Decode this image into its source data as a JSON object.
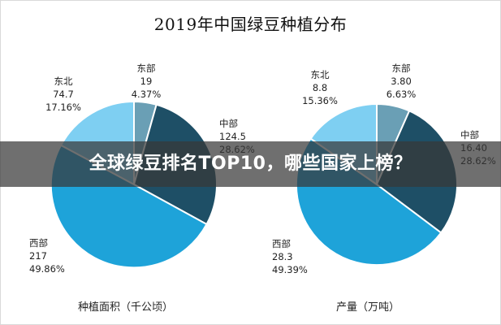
{
  "page": {
    "title": "2019年中国绿豆种植分布",
    "overlay_headline": "全球绿豆排名TOP10，哪些国家上榜？"
  },
  "colors": {
    "东部": "#6a9fb5",
    "中部": "#1e4f66",
    "西部": "#1ea3d9",
    "东北": "#7ecff2"
  },
  "chart_data": [
    {
      "type": "pie",
      "xlabel": "种植面积（千公顷）",
      "slices": [
        {
          "label": "东部",
          "value": 19,
          "value_text": "19",
          "percent": "4.37%"
        },
        {
          "label": "中部",
          "value": 124.5,
          "value_text": "124.5",
          "percent": "28.62%"
        },
        {
          "label": "西部",
          "value": 217,
          "value_text": "217",
          "percent": "49.86%"
        },
        {
          "label": "东北",
          "value": 74.7,
          "value_text": "74.7",
          "percent": "17.16%"
        }
      ]
    },
    {
      "type": "pie",
      "xlabel": "产量（万吨）",
      "slices": [
        {
          "label": "东部",
          "value": 3.8,
          "value_text": "3.80",
          "percent": "6.63%"
        },
        {
          "label": "中部",
          "value": 16.4,
          "value_text": "16.40",
          "percent": "28.62%"
        },
        {
          "label": "西部",
          "value": 28.3,
          "value_text": "28.3",
          "percent": "49.39%"
        },
        {
          "label": "东北",
          "value": 8.8,
          "value_text": "8.8",
          "percent": "15.36%"
        }
      ]
    }
  ]
}
